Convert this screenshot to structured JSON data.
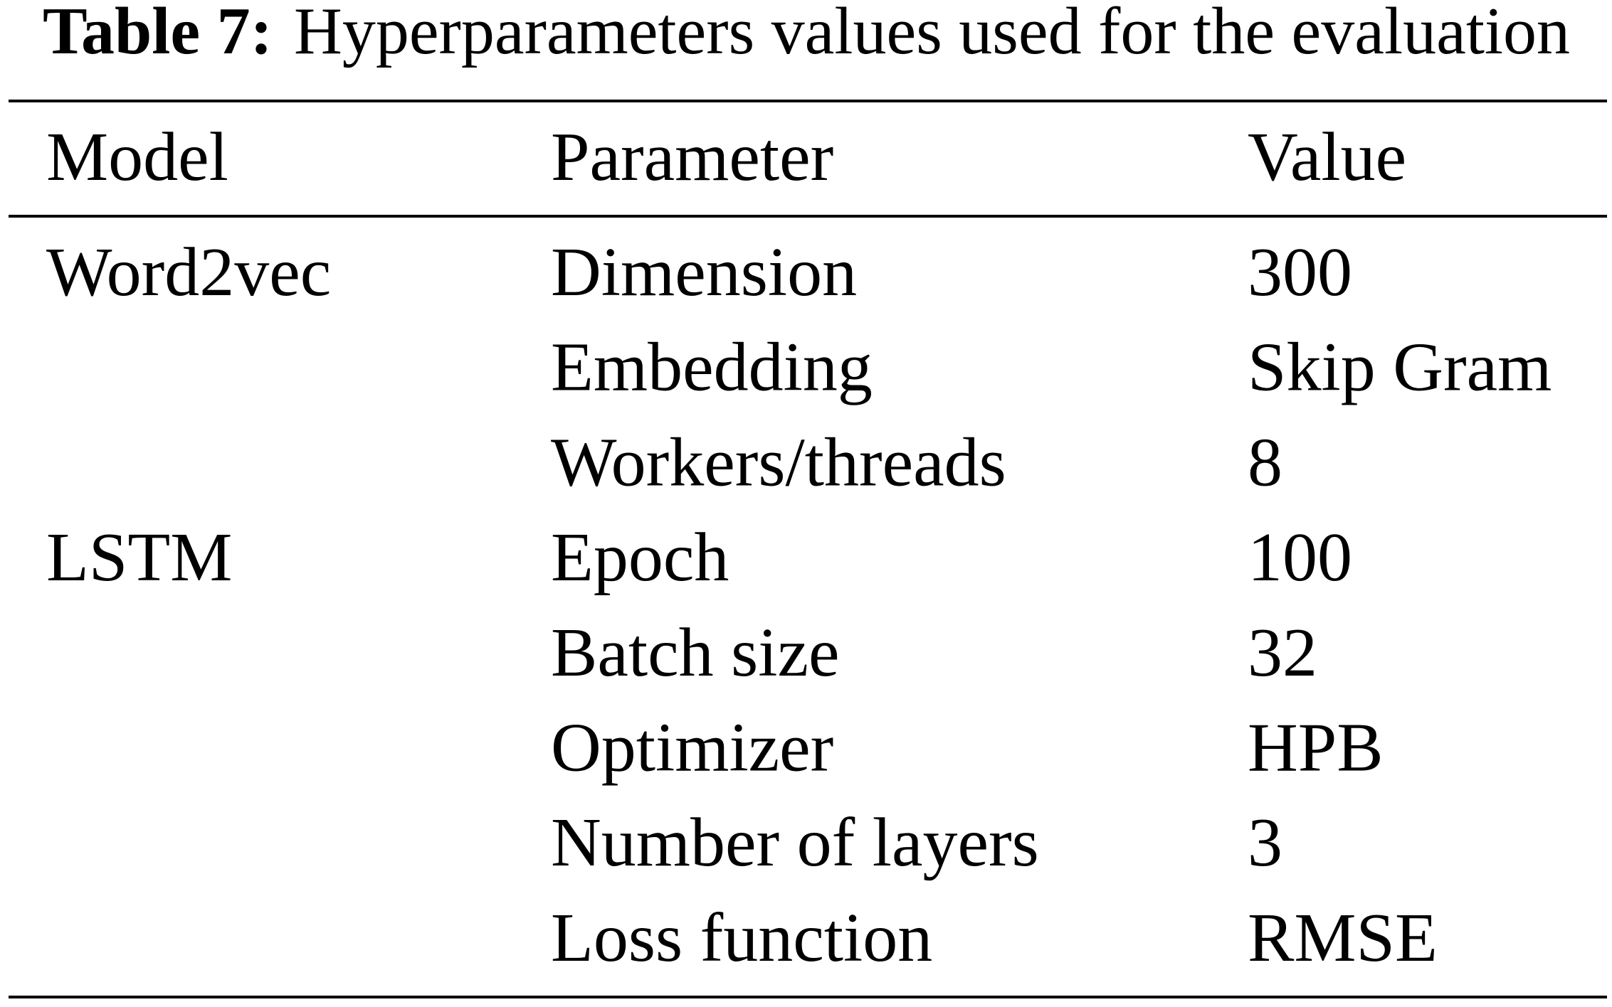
{
  "caption": {
    "label": "Table 7:",
    "text": "Hyperparameters values used for the evaluation"
  },
  "table": {
    "header": [
      "Model",
      "Parameter",
      "Value"
    ],
    "rows": [
      {
        "model": "Word2vec",
        "parameter": "Dimension",
        "value": 300
      },
      {
        "parameter": "Embedding",
        "value": "Skip Gram"
      },
      {
        "parameter": "Workers/threads",
        "value": 8
      },
      {
        "model": "LSTM",
        "parameter": "Epoch",
        "value": 100
      },
      {
        "parameter": "Batch size",
        "value": 32
      },
      {
        "parameter": "Optimizer",
        "value": "HPB"
      },
      {
        "parameter": "Number of layers",
        "value": 3
      },
      {
        "parameter": "Loss function",
        "value": "RMSE"
      }
    ]
  }
}
